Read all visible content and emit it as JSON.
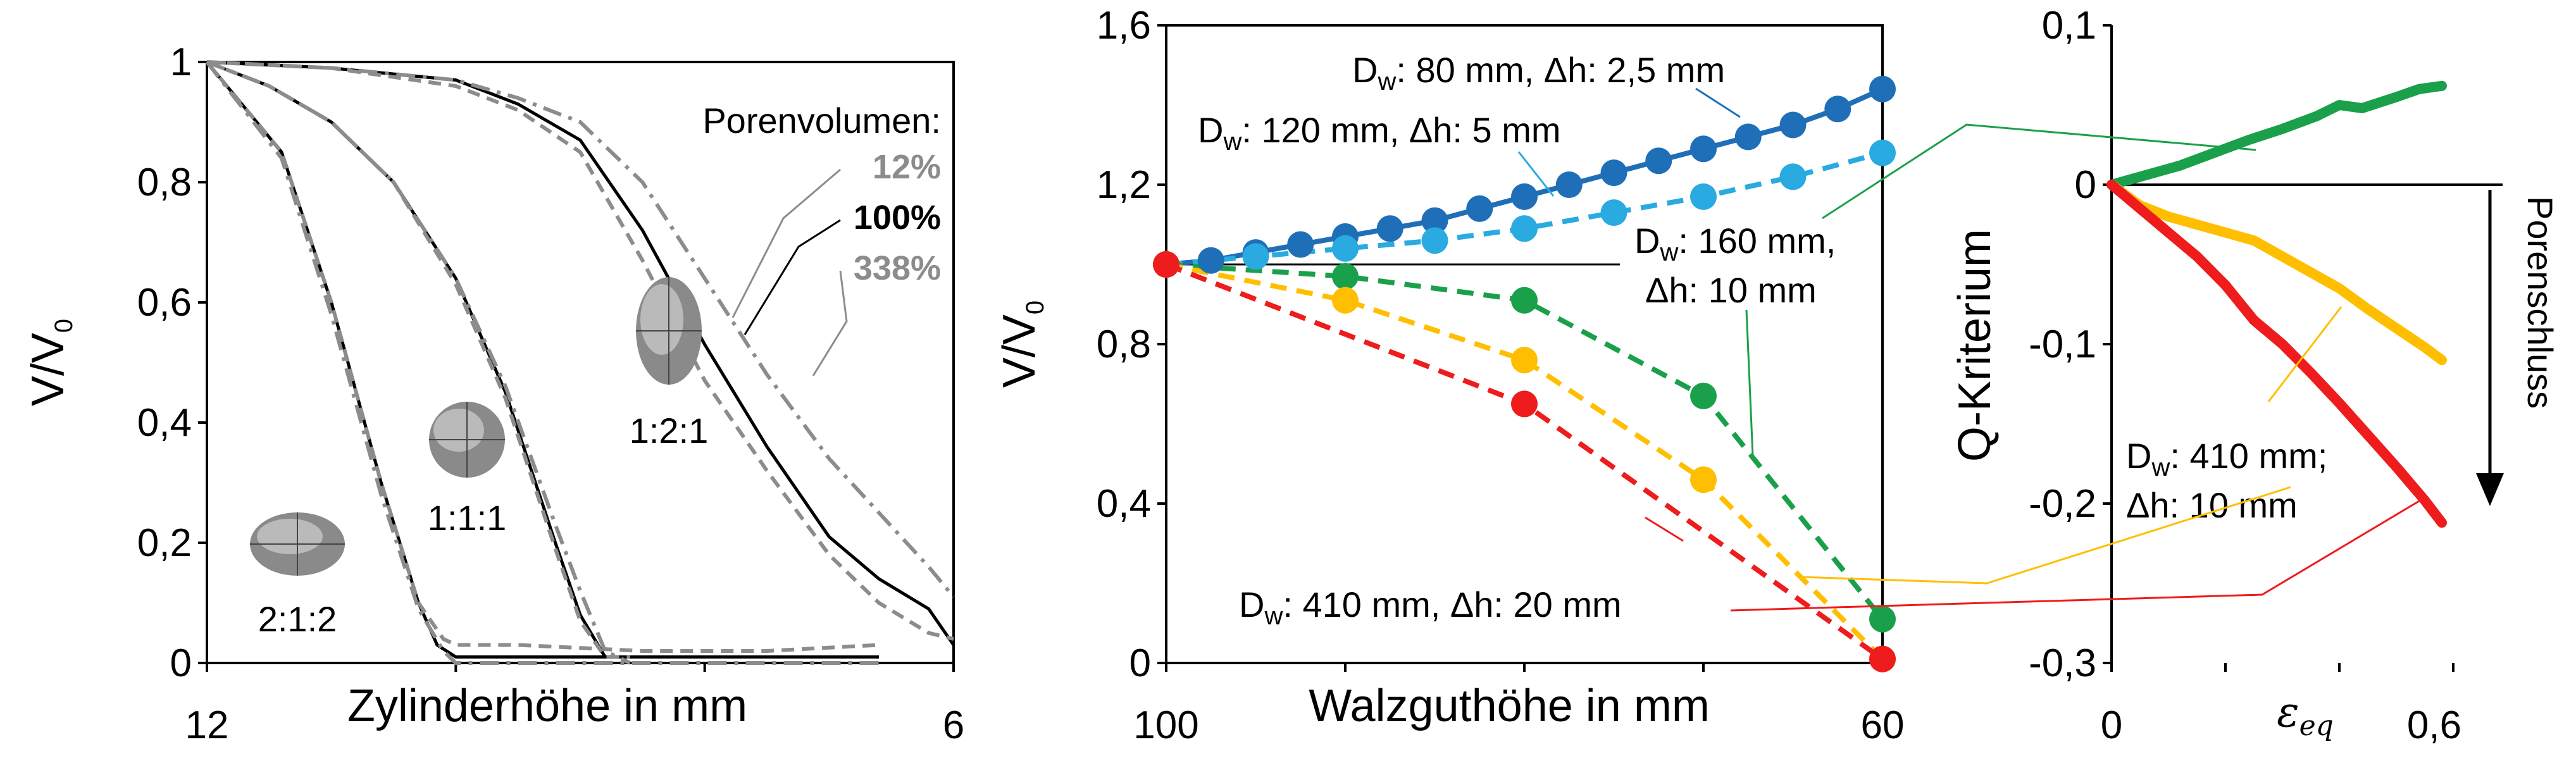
{
  "chart_data": [
    {
      "type": "line",
      "xlabel": "Zylinderhöhe in mm",
      "ylabel": "V/V0",
      "ylabel_main": "V/V",
      "ylabel_sub": "0",
      "xlim": [
        12,
        6
      ],
      "ylim": [
        0,
        1
      ],
      "x_ticks": [
        "12",
        "6"
      ],
      "y_ticks": [
        "0",
        "0,2",
        "0,4",
        "0,6",
        "0,8",
        "1"
      ],
      "legend_title": "Porenvolumen:",
      "legend": [
        {
          "label": "12%",
          "color": "#8c8c8c",
          "style": "dashdot"
        },
        {
          "label": "100%",
          "color": "#000000",
          "style": "solid"
        },
        {
          "label": "338%",
          "color": "#8c8c8c",
          "style": "dashed"
        }
      ],
      "shape_labels": [
        "2:1:2",
        "1:1:1",
        "1:2:1"
      ],
      "groups": [
        {
          "name": "2:1:2",
          "series": [
            {
              "label": "100%",
              "x": [
                12,
                11.4,
                11.0,
                10.6,
                10.3,
                10.15,
                10.0,
                9.5,
                8.5,
                7.5,
                6.6
              ],
              "values": [
                1,
                0.85,
                0.6,
                0.3,
                0.1,
                0.03,
                0.01,
                0.01,
                0.01,
                0.01,
                0.01
              ]
            },
            {
              "label": "12%",
              "x": [
                12,
                11.4,
                11.0,
                10.6,
                10.3,
                10.1,
                10.0,
                9.5,
                8.5,
                7.5,
                6.6
              ],
              "values": [
                1,
                0.84,
                0.58,
                0.28,
                0.09,
                0.02,
                0.0,
                0.0,
                0.0,
                0.0,
                0.0
              ]
            },
            {
              "label": "338%",
              "x": [
                12,
                11.4,
                11.0,
                10.6,
                10.3,
                10.1,
                10.0,
                9.5,
                8.5,
                7.5,
                6.6
              ],
              "values": [
                1,
                0.85,
                0.6,
                0.3,
                0.1,
                0.04,
                0.03,
                0.03,
                0.02,
                0.02,
                0.03
              ]
            }
          ]
        },
        {
          "name": "1:1:1",
          "series": [
            {
              "label": "100%",
              "x": [
                12,
                11.5,
                11.0,
                10.5,
                10.0,
                9.6,
                9.2,
                9.0,
                8.8,
                8.6
              ],
              "values": [
                1,
                0.96,
                0.9,
                0.8,
                0.64,
                0.45,
                0.2,
                0.08,
                0.01,
                0.01
              ]
            },
            {
              "label": "12%",
              "x": [
                12,
                11.5,
                11.0,
                10.5,
                10.0,
                9.6,
                9.2,
                9.0,
                8.8,
                8.6
              ],
              "values": [
                1,
                0.96,
                0.9,
                0.8,
                0.64,
                0.46,
                0.23,
                0.12,
                0.02,
                0.0
              ]
            },
            {
              "label": "338%",
              "x": [
                12,
                11.5,
                11.0,
                10.5,
                10.0,
                9.6,
                9.2,
                9.0,
                8.8,
                8.6
              ],
              "values": [
                1,
                0.96,
                0.9,
                0.8,
                0.63,
                0.44,
                0.19,
                0.07,
                0.01,
                0.01
              ]
            }
          ]
        },
        {
          "name": "1:2:1",
          "series": [
            {
              "label": "100%",
              "x": [
                12,
                11,
                10,
                9.5,
                9.0,
                8.5,
                8.0,
                7.5,
                7.0,
                6.6,
                6.2,
                6.0
              ],
              "values": [
                1,
                0.99,
                0.97,
                0.93,
                0.87,
                0.72,
                0.53,
                0.36,
                0.21,
                0.14,
                0.09,
                0.03
              ]
            },
            {
              "label": "12%",
              "x": [
                12,
                11,
                10,
                9.5,
                9.0,
                8.5,
                8.0,
                7.5,
                7.0,
                6.6,
                6.2,
                6.0
              ],
              "values": [
                1,
                0.99,
                0.97,
                0.94,
                0.9,
                0.8,
                0.64,
                0.48,
                0.34,
                0.25,
                0.16,
                0.11
              ]
            },
            {
              "label": "338%",
              "x": [
                12,
                11,
                10,
                9.5,
                9.0,
                8.5,
                8.0,
                7.5,
                7.0,
                6.6,
                6.2,
                6.0
              ],
              "values": [
                1,
                0.99,
                0.96,
                0.92,
                0.85,
                0.67,
                0.47,
                0.32,
                0.18,
                0.1,
                0.05,
                0.04
              ]
            }
          ]
        }
      ]
    },
    {
      "type": "line",
      "xlabel": "Walzguthöhe in mm",
      "ylabel": "V/V0",
      "ylabel_main": "V/V",
      "ylabel_sub": "0",
      "xlim": [
        100,
        60
      ],
      "ylim": [
        0,
        1.6
      ],
      "x_ticks": [
        "100",
        "60"
      ],
      "y_ticks": [
        "0",
        "0,4",
        "0,8",
        "1,2",
        "1,6"
      ],
      "series": [
        {
          "label": "Dw: 80 mm, Δh: 2,5 mm",
          "color": "#1f6fb8",
          "style": "solid",
          "x": [
            100,
            97.5,
            95,
            92.5,
            90,
            87.5,
            85,
            82.5,
            80,
            77.5,
            75,
            72.5,
            70,
            67.5,
            65,
            62.5,
            60
          ],
          "values": [
            1.0,
            1.01,
            1.03,
            1.05,
            1.07,
            1.09,
            1.11,
            1.14,
            1.17,
            1.2,
            1.23,
            1.26,
            1.29,
            1.32,
            1.35,
            1.39,
            1.44
          ]
        },
        {
          "label": "Dw: 120 mm, Δh: 5 mm",
          "color": "#29aae1",
          "style": "dashed",
          "x": [
            100,
            95,
            90,
            85,
            80,
            75,
            70,
            65,
            60
          ],
          "values": [
            1.0,
            1.02,
            1.04,
            1.06,
            1.09,
            1.13,
            1.17,
            1.22,
            1.28
          ]
        },
        {
          "label": "Dw: 160 mm, Δh: 10 mm",
          "color": "#1aa04a",
          "style": "dashed",
          "x": [
            100,
            90,
            80,
            70,
            60
          ],
          "values": [
            1.0,
            0.97,
            0.91,
            0.67,
            0.11
          ]
        },
        {
          "label": "Dw: 410 mm, Δh: 20 mm",
          "color": "#ffbf00",
          "style": "dashed",
          "x": [
            100,
            90,
            80,
            70,
            60
          ],
          "values": [
            1.0,
            0.91,
            0.76,
            0.46,
            0.01
          ]
        },
        {
          "label": "",
          "color": "#ee1c1c",
          "style": "dashed",
          "x": [
            100,
            80,
            60
          ],
          "values": [
            1.0,
            0.65,
            0.01
          ]
        }
      ]
    },
    {
      "type": "line",
      "ylabel": "Q-Kriterium",
      "xlabel": "ε_eq",
      "xlabel_main": "ε",
      "xlabel_sub": "eq",
      "xlim": [
        0,
        0.6
      ],
      "ylim": [
        -0.3,
        0.1
      ],
      "x_ticks": [
        "0",
        "0,6"
      ],
      "y_ticks": [
        "-0,3",
        "-0,2",
        "-0,1",
        "0",
        "0,1"
      ],
      "arrow_label": "Porenschluss",
      "series": [
        {
          "label": "",
          "color": "#1aa04a",
          "x": [
            0,
            0.06,
            0.12,
            0.18,
            0.24,
            0.3,
            0.36,
            0.4,
            0.44,
            0.5,
            0.54,
            0.58
          ],
          "values": [
            0,
            0.006,
            0.012,
            0.02,
            0.028,
            0.035,
            0.043,
            0.05,
            0.048,
            0.055,
            0.06,
            0.062
          ]
        },
        {
          "label": "Dw: 410 mm; Δh: 10 mm",
          "color": "#ffbf00",
          "x": [
            0,
            0.05,
            0.1,
            0.15,
            0.2,
            0.25,
            0.3,
            0.35,
            0.4,
            0.45,
            0.5,
            0.55,
            0.58
          ],
          "values": [
            0,
            -0.013,
            -0.02,
            -0.025,
            -0.03,
            -0.035,
            -0.045,
            -0.055,
            -0.065,
            -0.078,
            -0.09,
            -0.102,
            -0.11
          ]
        },
        {
          "label": "",
          "color": "#ee1c1c",
          "x": [
            0,
            0.05,
            0.1,
            0.15,
            0.2,
            0.25,
            0.3,
            0.35,
            0.4,
            0.45,
            0.5,
            0.55,
            0.58
          ],
          "values": [
            0,
            -0.015,
            -0.03,
            -0.045,
            -0.063,
            -0.085,
            -0.1,
            -0.118,
            -0.137,
            -0.157,
            -0.177,
            -0.198,
            -0.212
          ]
        }
      ]
    }
  ]
}
